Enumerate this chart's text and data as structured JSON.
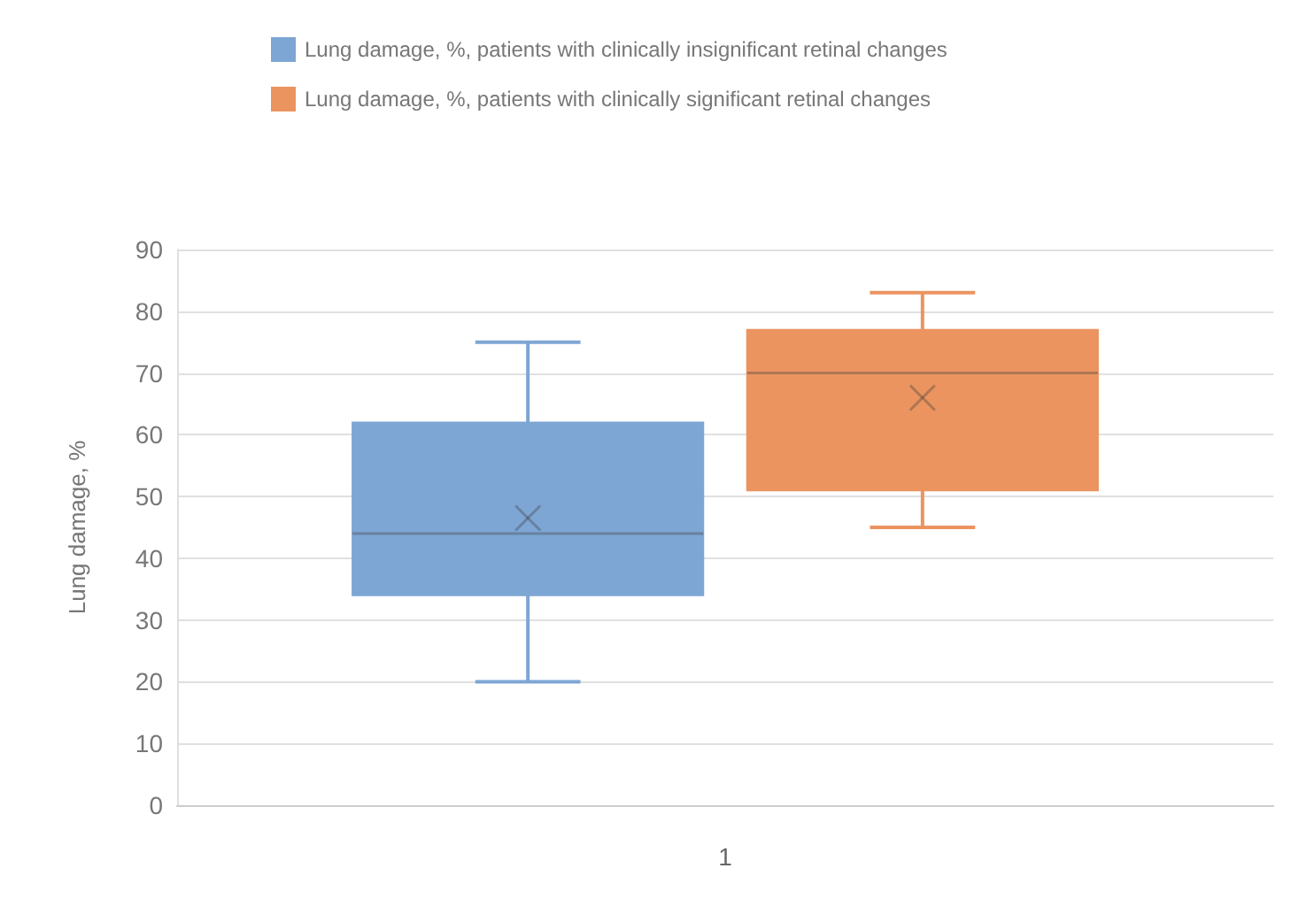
{
  "chart_data": {
    "type": "box",
    "categories": [
      "1"
    ],
    "ylabel": "Lung damage, %",
    "ylim": [
      0,
      90
    ],
    "yticks": [
      0,
      10,
      20,
      30,
      40,
      50,
      60,
      70,
      80,
      90
    ],
    "grid": "y",
    "legend": "top",
    "series": [
      {
        "name": "Lung damage, %, patients with clinically insignificant retinal changes",
        "color": "#7ea6d4",
        "boxes": [
          {
            "low": 20,
            "q1": 34,
            "median": 44,
            "q3": 62,
            "high": 75,
            "mean": 46.5
          }
        ]
      },
      {
        "name": "Lung damage, %, patients with clinically significant retinal changes",
        "color": "#eb9460",
        "boxes": [
          {
            "low": 45,
            "q1": 51,
            "median": 70,
            "q3": 77,
            "high": 83,
            "mean": 66
          }
        ]
      }
    ]
  }
}
